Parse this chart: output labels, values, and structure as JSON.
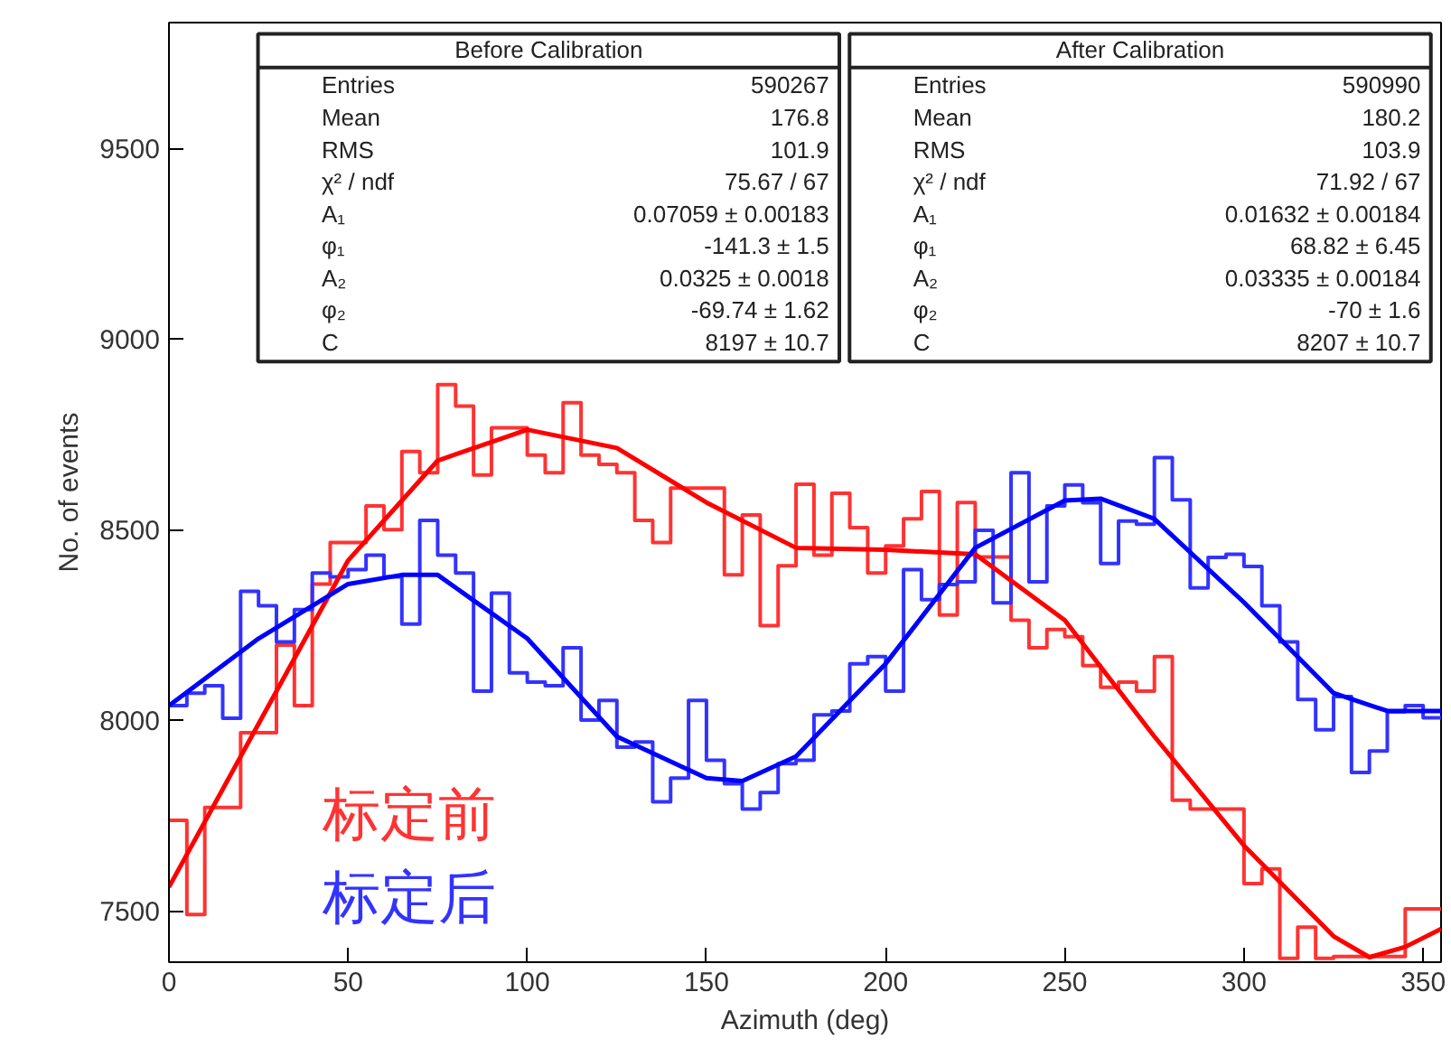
{
  "chart_data": {
    "type": "histogram",
    "xlabel": "Azimuth (deg)",
    "ylabel": "No. of events",
    "bins": [
      0,
      5,
      10,
      15,
      20,
      25,
      30,
      35,
      40,
      45,
      50,
      55,
      60,
      65,
      70,
      75,
      80,
      85,
      90,
      95,
      100,
      105,
      110,
      115,
      120,
      125,
      130,
      135,
      140,
      145,
      150,
      155,
      160,
      165,
      170,
      175,
      180,
      185,
      190,
      195,
      200,
      205,
      210,
      215,
      220,
      225,
      230,
      235,
      240,
      245,
      250,
      255,
      260,
      265,
      270,
      275,
      280,
      285,
      290,
      295,
      300,
      305,
      310,
      315,
      320,
      325,
      330,
      335,
      340,
      345,
      350,
      355
    ],
    "xlim": [
      0,
      355
    ],
    "xticks": [
      0,
      50,
      100,
      150,
      200,
      250,
      300,
      350
    ],
    "ylim": [
      7365,
      9830
    ],
    "yticks": [
      7500,
      8000,
      8500,
      9000,
      9500
    ],
    "grid": false,
    "legend": "bottom left",
    "series": [
      {
        "name": "标定前",
        "color": "#ff3333",
        "values": [
          7737,
          7490,
          7771,
          7771,
          7967,
          7967,
          8197,
          8038,
          8357,
          8466,
          8466,
          8562,
          8500,
          8705,
          8649,
          8880,
          8824,
          8643,
          8767,
          8767,
          8695,
          8649,
          8833,
          8695,
          8671,
          8649,
          8524,
          8466,
          8609,
          8609,
          8609,
          8381,
          8538,
          8248,
          8405,
          8619,
          8433,
          8595,
          8505,
          8386,
          8457,
          8528,
          8600,
          8276,
          8571,
          8428,
          8428,
          8262,
          8190,
          8238,
          8219,
          8143,
          8086,
          8100,
          8076,
          8167,
          7790,
          7767,
          7767,
          7767,
          7571,
          7610,
          7375,
          7457,
          7375,
          7380,
          7380,
          7380,
          7380,
          7505,
          7505
        ]
      },
      {
        "name": "标定后",
        "color": "#3333ff",
        "values": [
          8038,
          8071,
          8090,
          8005,
          8338,
          8300,
          8205,
          8290,
          8386,
          8376,
          8395,
          8433,
          8376,
          8252,
          8524,
          8433,
          8386,
          8076,
          8333,
          8124,
          8100,
          8090,
          8190,
          8000,
          8052,
          7929,
          7943,
          7786,
          7848,
          8052,
          7895,
          7833,
          7767,
          7810,
          7886,
          7895,
          8014,
          8024,
          8148,
          8167,
          8076,
          8395,
          8316,
          8356,
          8363,
          8498,
          8308,
          8649,
          8363,
          8562,
          8617,
          8570,
          8411,
          8522,
          8514,
          8689,
          8578,
          8347,
          8427,
          8435,
          8403,
          8300,
          8205,
          8054,
          7975,
          8062,
          7863,
          7919,
          8022,
          8038,
          8006
        ]
      },
      {
        "type": "line",
        "color": "#ff0000",
        "x": [
          0,
          25,
          50,
          75,
          100,
          125,
          150,
          175,
          200,
          225,
          250,
          275,
          300,
          325,
          335,
          345,
          355
        ],
        "values": [
          7562,
          7990,
          8419,
          8681,
          8762,
          8714,
          8571,
          8452,
          8447,
          8435,
          8262,
          7957,
          7671,
          7433,
          7378,
          7405,
          7452
        ]
      },
      {
        "type": "line",
        "color": "#0000ff",
        "x": [
          0,
          25,
          50,
          65,
          75,
          100,
          125,
          150,
          160,
          175,
          200,
          225,
          250,
          260,
          275,
          300,
          325,
          340,
          355
        ],
        "values": [
          8038,
          8214,
          8357,
          8381,
          8381,
          8214,
          7957,
          7848,
          7840,
          7905,
          8148,
          8452,
          8576,
          8581,
          8528,
          8309,
          8071,
          8024,
          8024
        ]
      }
    ],
    "annotations": [
      "Before Calibration",
      "Entries  590267",
      "Mean  176.8",
      "RMS  101.9",
      "χ² / ndf  75.67 / 67",
      "A₁  0.07059 ± 0.00183",
      "φ₁  -141.3 ± 1.5",
      "A₂  0.0325 ± 0.0018",
      "φ₂  -69.74 ± 1.62",
      "C  8197 ± 10.7",
      "After Calibration",
      "Entries  590990",
      "Mean  180.2",
      "RMS  103.9",
      "χ² / ndf  71.92 / 67",
      "A₁  0.01632 ± 0.00184",
      "φ₁  68.82 ± 6.45",
      "A₂  0.03335 ± 0.00184",
      "φ₂  -70 ± 1.6",
      "C  8207 ± 10.7"
    ]
  }
}
